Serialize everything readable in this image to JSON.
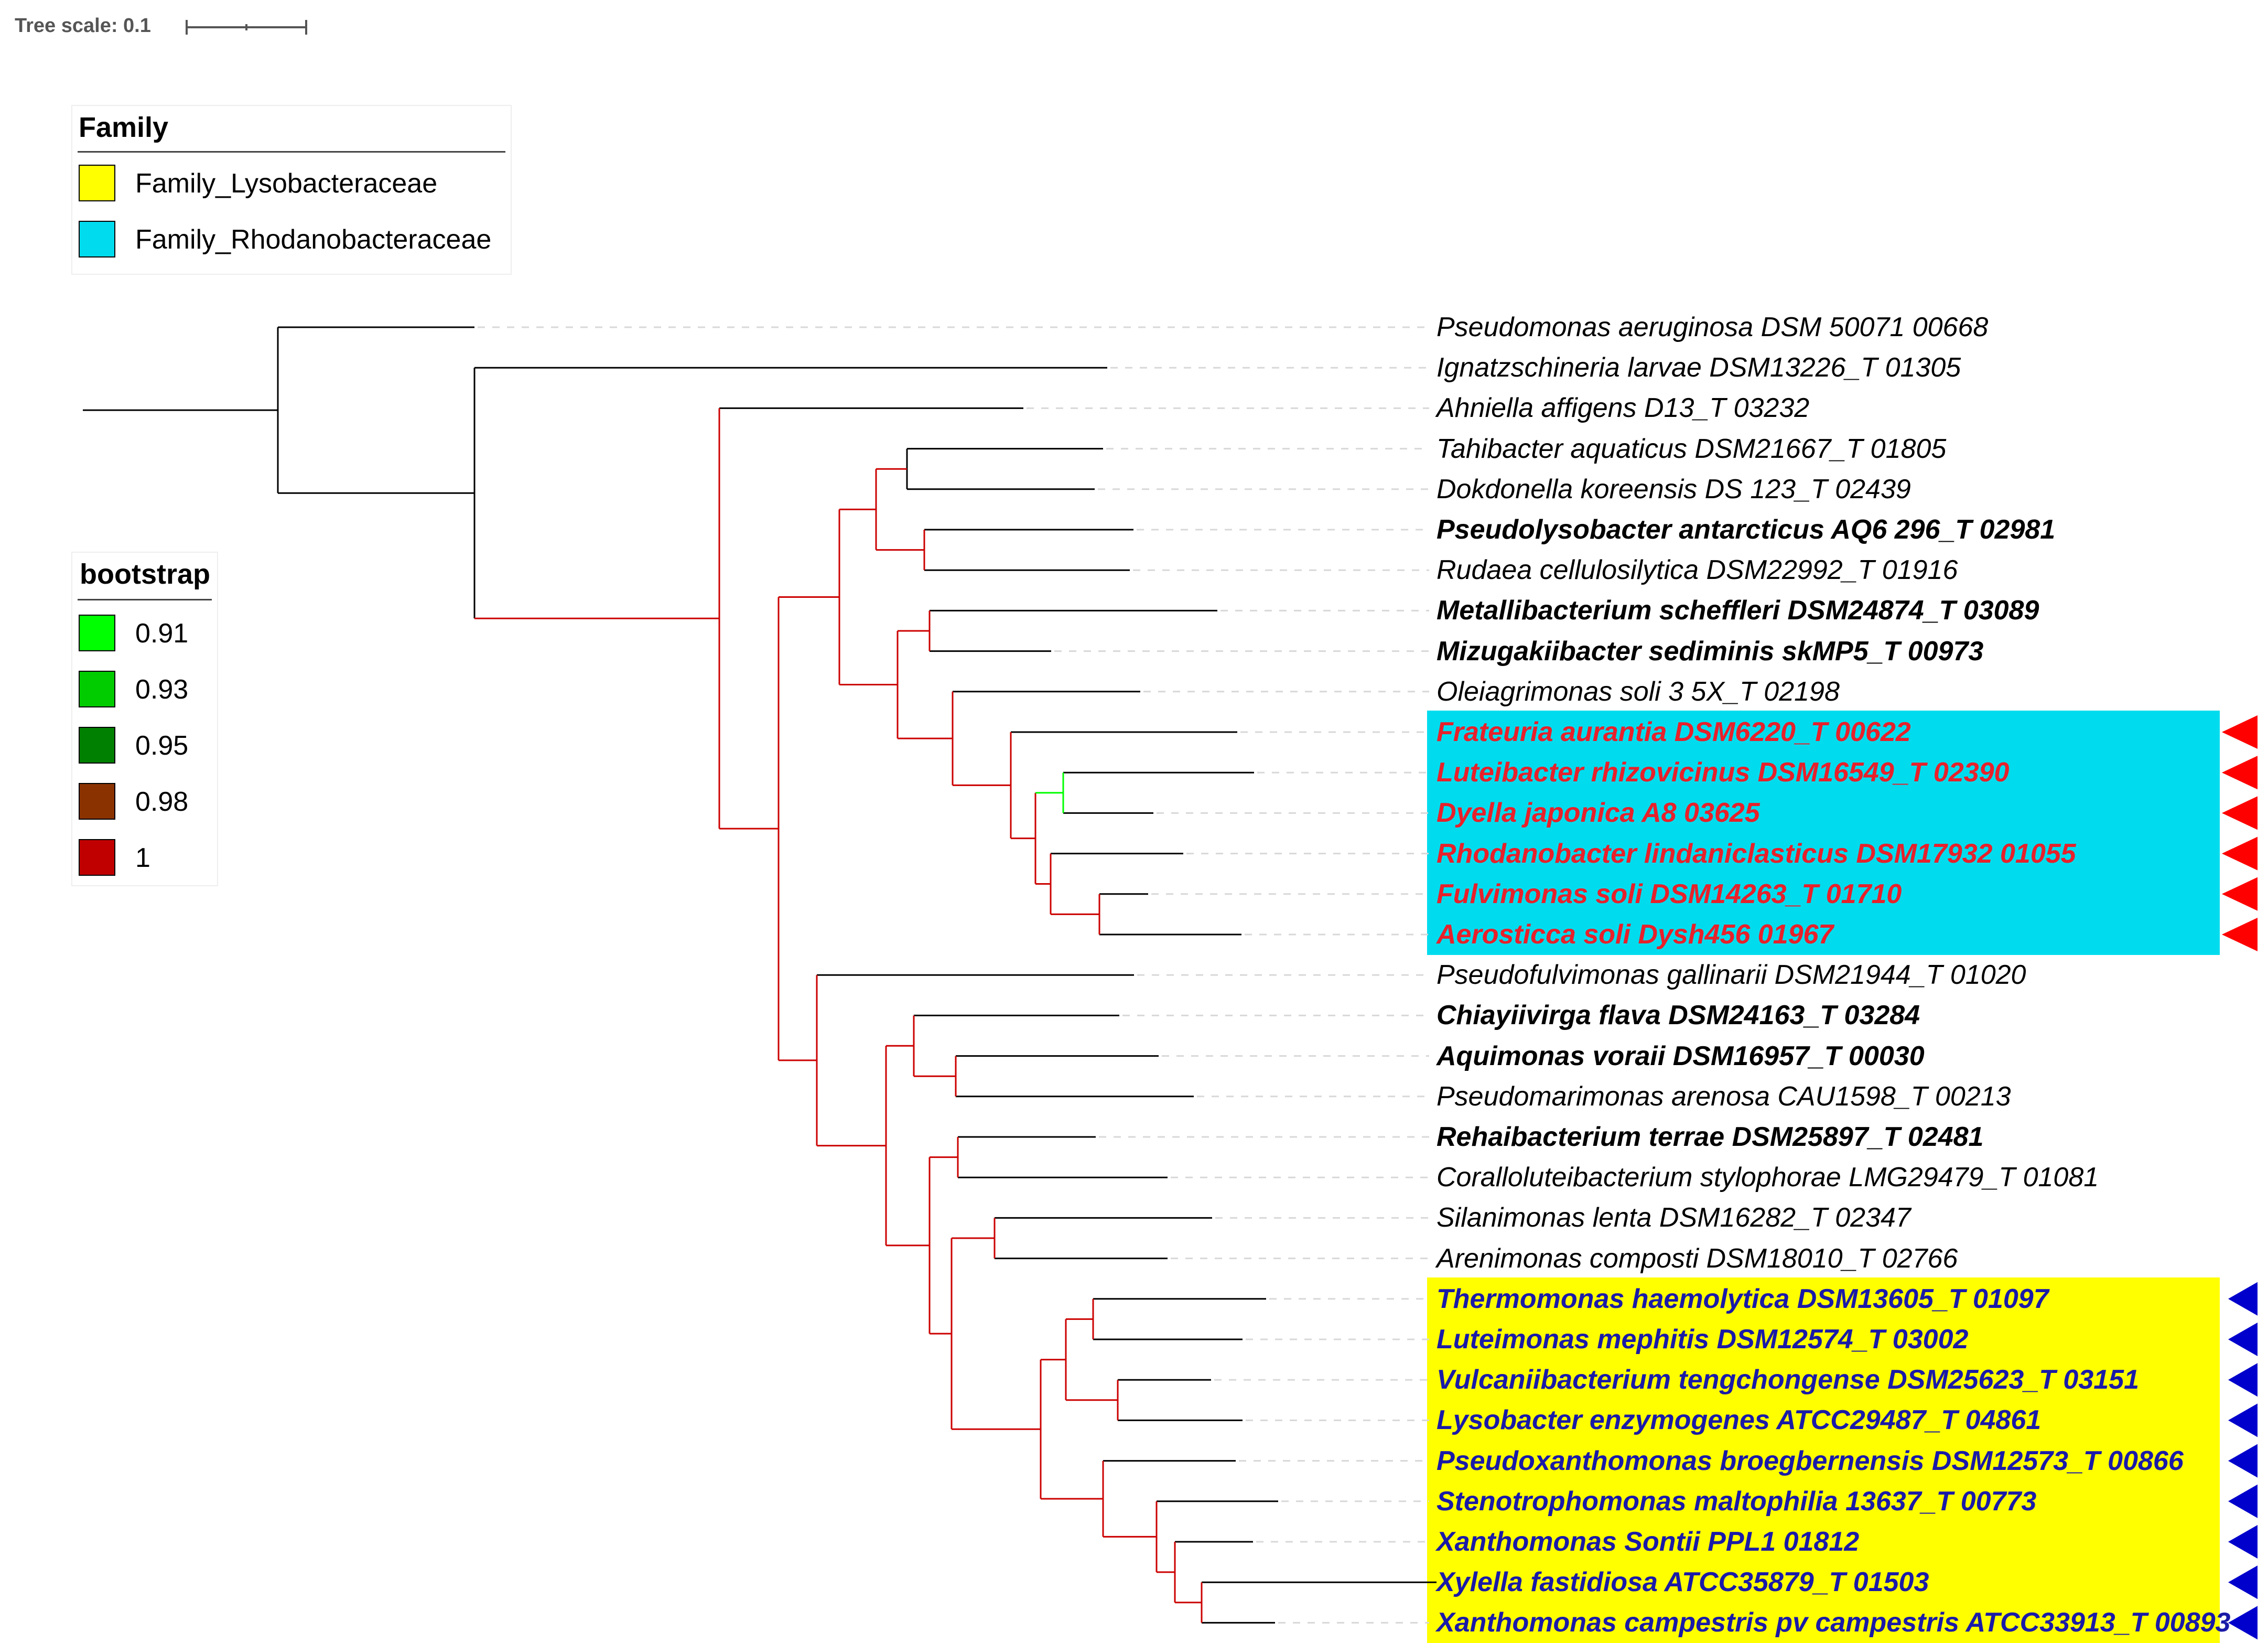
{
  "scale": {
    "label": "Tree scale: 0.1"
  },
  "family_legend": {
    "title": "Family",
    "entries": [
      {
        "label": "Family_Lysobacteraceae",
        "color": "#ffff00"
      },
      {
        "label": "Family_Rhodanobacteraceae",
        "color": "#00dcee"
      }
    ]
  },
  "bootstrap_legend": {
    "title": "bootstrap",
    "entries": [
      {
        "label": "0.91",
        "color": "#00ff00"
      },
      {
        "label": "0.93",
        "color": "#00cc00"
      },
      {
        "label": "0.95",
        "color": "#008000"
      },
      {
        "label": "0.98",
        "color": "#8b3300"
      },
      {
        "label": "1",
        "color": "#c00000"
      }
    ]
  },
  "colors": {
    "rhodanobacteraceae_band": "#00dcee",
    "lysobacteraceae_band": "#ffff00",
    "rhodano_text": "#e8202a",
    "lyso_text": "#1a1aa8",
    "rhodano_marker": "#ff0000",
    "lyso_marker": "#0000cc",
    "branch_black": "#000000",
    "branch_red": "#cc0000",
    "branch_green": "#00ff00"
  },
  "leaves": [
    {
      "label": "Pseudomonas aeruginosa DSM 50071 00668",
      "bold": false,
      "group": "none"
    },
    {
      "label": "Ignatzschineria larvae DSM13226_T 01305",
      "bold": false,
      "group": "none"
    },
    {
      "label": "Ahniella affigens D13_T 03232",
      "bold": false,
      "group": "none"
    },
    {
      "label": "Tahibacter aquaticus DSM21667_T 01805",
      "bold": false,
      "group": "none"
    },
    {
      "label": "Dokdonella koreensis DS 123_T 02439",
      "bold": false,
      "group": "none"
    },
    {
      "label": "Pseudolysobacter antarcticus AQ6 296_T 02981",
      "bold": true,
      "group": "none"
    },
    {
      "label": "Rudaea cellulosilytica DSM22992_T 01916",
      "bold": false,
      "group": "none"
    },
    {
      "label": "Metallibacterium scheffleri DSM24874_T 03089",
      "bold": true,
      "group": "none"
    },
    {
      "label": "Mizugakiibacter sediminis skMP5_T 00973",
      "bold": true,
      "group": "none"
    },
    {
      "label": "Oleiagrimonas soli 3 5X_T 02198",
      "bold": false,
      "group": "none"
    },
    {
      "label": "Frateuria aurantia DSM6220_T 00622",
      "bold": true,
      "group": "rhodano"
    },
    {
      "label": "Luteibacter rhizovicinus DSM16549_T 02390",
      "bold": true,
      "group": "rhodano"
    },
    {
      "label": "Dyella japonica A8 03625",
      "bold": true,
      "group": "rhodano"
    },
    {
      "label": "Rhodanobacter lindaniclasticus DSM17932 01055",
      "bold": true,
      "group": "rhodano"
    },
    {
      "label": "Fulvimonas soli DSM14263_T 01710",
      "bold": true,
      "group": "rhodano"
    },
    {
      "label": "Aerosticca soli Dysh456 01967",
      "bold": true,
      "group": "rhodano"
    },
    {
      "label": "Pseudofulvimonas gallinarii DSM21944_T 01020",
      "bold": false,
      "group": "none"
    },
    {
      "label": "Chiayiivirga flava DSM24163_T 03284",
      "bold": true,
      "group": "none"
    },
    {
      "label": "Aquimonas voraii DSM16957_T 00030",
      "bold": true,
      "group": "none"
    },
    {
      "label": "Pseudomarimonas arenosa CAU1598_T 00213",
      "bold": false,
      "group": "none"
    },
    {
      "label": "Rehaibacterium terrae DSM25897_T 02481",
      "bold": true,
      "group": "none"
    },
    {
      "label": "Coralloluteibacterium stylophorae LMG29479_T 01081",
      "bold": false,
      "group": "none"
    },
    {
      "label": "Silanimonas lenta DSM16282_T 02347",
      "bold": false,
      "group": "none"
    },
    {
      "label": "Arenimonas composti DSM18010_T 02766",
      "bold": false,
      "group": "none"
    },
    {
      "label": "Thermomonas haemolytica DSM13605_T 01097",
      "bold": true,
      "group": "lyso"
    },
    {
      "label": "Luteimonas mephitis DSM12574_T 03002",
      "bold": true,
      "group": "lyso"
    },
    {
      "label": "Vulcaniibacterium tengchongense DSM25623_T 03151",
      "bold": true,
      "group": "lyso"
    },
    {
      "label": "Lysobacter enzymogenes ATCC29487_T 04861",
      "bold": true,
      "group": "lyso"
    },
    {
      "label": "Pseudoxanthomonas broegbernensis DSM12573_T 00866",
      "bold": true,
      "group": "lyso"
    },
    {
      "label": "Stenotrophomonas maltophilia 13637_T 00773",
      "bold": true,
      "group": "lyso"
    },
    {
      "label": "Xanthomonas Sontii PPL1 01812",
      "bold": true,
      "group": "lyso"
    },
    {
      "label": "Xylella fastidiosa ATCC35879_T 01503",
      "bold": true,
      "group": "lyso"
    },
    {
      "label": "Xanthomonas campestris pv campestris ATCC33913_T 00893",
      "bold": true,
      "group": "lyso"
    }
  ]
}
